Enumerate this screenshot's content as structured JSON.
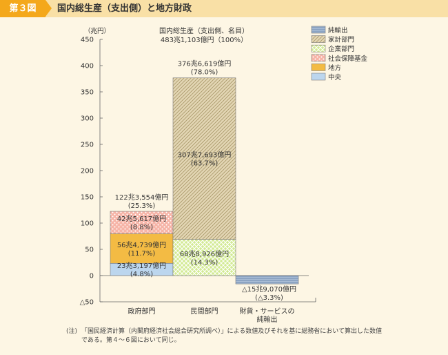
{
  "header": {
    "figure_label": "第３図",
    "title": "国内総生産（支出側）と地方財政"
  },
  "notes": {
    "label": "(注)",
    "text": "「国民経済計算（内閣府経済社会総合研究所調べ）」による数値及びそれを基に総務省において算出した数値である。第４～６図において同じ。"
  },
  "chart_data": {
    "type": "bar",
    "stacked": true,
    "y_unit_label": "（兆円）",
    "ylim": [
      -50,
      450
    ],
    "yticks": [
      -50,
      0,
      50,
      100,
      150,
      200,
      250,
      300,
      350,
      400,
      450
    ],
    "ytick_labels": [
      "△50",
      "0",
      "50",
      "100",
      "150",
      "200",
      "250",
      "300",
      "350",
      "400",
      "450"
    ],
    "categories": [
      "政府部門",
      "民間部門",
      "財貨・サービスの純輸出"
    ],
    "category_lines": [
      [
        "政府部門"
      ],
      [
        "民間部門"
      ],
      [
        "財貨・サービスの",
        "純輸出"
      ]
    ],
    "gdp_label": {
      "line1": "国内総生産（支出側、名目）",
      "line2": "483兆1,103億円（100%）"
    },
    "series": [
      {
        "name": "中央",
        "color": "#bcd6ee",
        "pattern": "solid",
        "values": [
          23.3197,
          null,
          null
        ],
        "label": [
          "23兆3,197億円",
          "(4.8%)"
        ]
      },
      {
        "name": "地方",
        "color": "#f3bb44",
        "pattern": "solid",
        "values": [
          56.4739,
          null,
          null
        ],
        "label": [
          "56兆4,739億円",
          "(11.7%)"
        ]
      },
      {
        "name": "社会保障基金",
        "color": "#f6b4a7",
        "pattern": "dots",
        "values": [
          42.5617,
          null,
          null
        ],
        "label": [
          "42兆5,617億円",
          "(8.8%)"
        ]
      },
      {
        "name": "企業部門",
        "color": "#d2ea93",
        "pattern": "cross",
        "values": [
          null,
          68.8926,
          null
        ],
        "label": [
          "68兆8,926億円",
          "(14.3%)"
        ]
      },
      {
        "name": "家計部門",
        "color": "#e3d6b4",
        "pattern": "diag",
        "values": [
          null,
          307.7693,
          null
        ],
        "label": [
          "307兆7,693億円",
          "(63.7%)"
        ]
      },
      {
        "name": "純輸出",
        "color": "#a9bdd6",
        "pattern": "hlines",
        "values": [
          null,
          null,
          -15.907
        ],
        "label": [
          "△15兆9,070億円",
          "(△3.3%)"
        ]
      }
    ],
    "totals": [
      {
        "category": "政府部門",
        "value": 122.3554,
        "label": [
          "122兆3,554億円",
          "(25.3%)"
        ]
      },
      {
        "category": "民間部門",
        "value": 376.6619,
        "label": [
          "376兆6,619億円",
          "(78.0%)"
        ]
      }
    ],
    "legend": {
      "placement": "top-right",
      "order": [
        "純輸出",
        "家計部門",
        "企業部門",
        "社会保障基金",
        "地方",
        "中央"
      ]
    }
  }
}
